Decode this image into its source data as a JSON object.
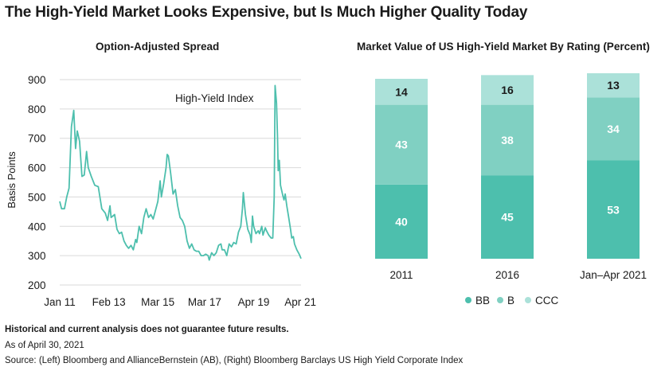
{
  "title": "The High-Yield Market Looks Expensive, but Is Much Higher Quality Today",
  "footer": {
    "disclaimer": "Historical and current analysis does not guarantee future results.",
    "as_of": "As of April 30, 2021",
    "source": "Source: (Left) Bloomberg and AllianceBernstein (AB), (Right) Bloomberg Barclays US High Yield Corporate Index"
  },
  "colors": {
    "line": "#4dbfad",
    "grid": "#d9d9d9",
    "BB": "#4dbfad",
    "B": "#80d0c2",
    "CCC": "#abe1d9"
  },
  "chart_data": [
    {
      "type": "line",
      "title": "Option-Adjusted Spread",
      "ylabel": "Basis Points",
      "xlabel": "",
      "ylim": [
        200,
        900
      ],
      "yticks": [
        200,
        300,
        400,
        500,
        600,
        700,
        800,
        900
      ],
      "xlim": [
        2011.0,
        2021.33
      ],
      "xticks": [
        {
          "value": 2011.0,
          "label": "Jan 11"
        },
        {
          "value": 2013.1,
          "label": "Feb 13"
        },
        {
          "value": 2015.2,
          "label": "Mar 15"
        },
        {
          "value": 2017.2,
          "label": "Mar 17"
        },
        {
          "value": 2019.3,
          "label": "Apr 19"
        },
        {
          "value": 2021.3,
          "label": "Apr 21"
        }
      ],
      "grid": true,
      "annotation": "High-Yield Index",
      "series": [
        {
          "name": "High-Yield Index",
          "points": [
            [
              2011.0,
              485
            ],
            [
              2011.08,
              460
            ],
            [
              2011.2,
              460
            ],
            [
              2011.3,
              500
            ],
            [
              2011.4,
              530
            ],
            [
              2011.5,
              740
            ],
            [
              2011.6,
              795
            ],
            [
              2011.68,
              665
            ],
            [
              2011.75,
              725
            ],
            [
              2011.85,
              690
            ],
            [
              2011.95,
              570
            ],
            [
              2012.05,
              575
            ],
            [
              2012.15,
              655
            ],
            [
              2012.22,
              600
            ],
            [
              2012.35,
              570
            ],
            [
              2012.5,
              540
            ],
            [
              2012.65,
              535
            ],
            [
              2012.8,
              460
            ],
            [
              2012.95,
              445
            ],
            [
              2013.05,
              420
            ],
            [
              2013.15,
              470
            ],
            [
              2013.2,
              430
            ],
            [
              2013.35,
              440
            ],
            [
              2013.45,
              390
            ],
            [
              2013.55,
              375
            ],
            [
              2013.65,
              380
            ],
            [
              2013.75,
              350
            ],
            [
              2013.85,
              335
            ],
            [
              2013.95,
              325
            ],
            [
              2014.05,
              335
            ],
            [
              2014.15,
              320
            ],
            [
              2014.25,
              355
            ],
            [
              2014.3,
              345
            ],
            [
              2014.4,
              400
            ],
            [
              2014.5,
              375
            ],
            [
              2014.6,
              430
            ],
            [
              2014.7,
              460
            ],
            [
              2014.8,
              430
            ],
            [
              2014.9,
              440
            ],
            [
              2015.0,
              425
            ],
            [
              2015.1,
              455
            ],
            [
              2015.2,
              485
            ],
            [
              2015.3,
              555
            ],
            [
              2015.35,
              500
            ],
            [
              2015.45,
              545
            ],
            [
              2015.55,
              600
            ],
            [
              2015.6,
              645
            ],
            [
              2015.65,
              640
            ],
            [
              2015.75,
              580
            ],
            [
              2015.85,
              510
            ],
            [
              2015.95,
              525
            ],
            [
              2016.05,
              470
            ],
            [
              2016.15,
              430
            ],
            [
              2016.25,
              420
            ],
            [
              2016.35,
              400
            ],
            [
              2016.45,
              350
            ],
            [
              2016.55,
              325
            ],
            [
              2016.65,
              340
            ],
            [
              2016.75,
              320
            ],
            [
              2016.85,
              315
            ],
            [
              2016.95,
              315
            ],
            [
              2017.05,
              300
            ],
            [
              2017.15,
              300
            ],
            [
              2017.25,
              305
            ],
            [
              2017.35,
              300
            ],
            [
              2017.4,
              285
            ],
            [
              2017.5,
              310
            ],
            [
              2017.6,
              300
            ],
            [
              2017.7,
              310
            ],
            [
              2017.8,
              335
            ],
            [
              2017.9,
              340
            ],
            [
              2017.95,
              320
            ],
            [
              2018.05,
              320
            ],
            [
              2018.15,
              300
            ],
            [
              2018.25,
              340
            ],
            [
              2018.35,
              330
            ],
            [
              2018.45,
              345
            ],
            [
              2018.55,
              340
            ],
            [
              2018.65,
              380
            ],
            [
              2018.75,
              400
            ],
            [
              2018.82,
              460
            ],
            [
              2018.86,
              515
            ],
            [
              2018.95,
              440
            ],
            [
              2019.05,
              390
            ],
            [
              2019.15,
              370
            ],
            [
              2019.2,
              345
            ],
            [
              2019.25,
              435
            ],
            [
              2019.3,
              400
            ],
            [
              2019.4,
              375
            ],
            [
              2019.5,
              385
            ],
            [
              2019.55,
              375
            ],
            [
              2019.65,
              400
            ],
            [
              2019.7,
              370
            ],
            [
              2019.8,
              395
            ],
            [
              2019.85,
              385
            ],
            [
              2019.95,
              370
            ],
            [
              2020.05,
              360
            ],
            [
              2020.12,
              360
            ],
            [
              2020.18,
              500
            ],
            [
              2020.22,
              880
            ],
            [
              2020.28,
              820
            ],
            [
              2020.32,
              710
            ],
            [
              2020.35,
              590
            ],
            [
              2020.4,
              625
            ],
            [
              2020.45,
              540
            ],
            [
              2020.55,
              505
            ],
            [
              2020.6,
              490
            ],
            [
              2020.65,
              510
            ],
            [
              2020.72,
              470
            ],
            [
              2020.8,
              430
            ],
            [
              2020.88,
              390
            ],
            [
              2020.93,
              360
            ],
            [
              2021.0,
              365
            ],
            [
              2021.05,
              340
            ],
            [
              2021.15,
              320
            ],
            [
              2021.25,
              305
            ],
            [
              2021.33,
              290
            ]
          ]
        }
      ]
    },
    {
      "type": "bar",
      "stacked": true,
      "title": "Market Value of US High-Yield Market By Rating (Percent)",
      "categories": [
        "2011",
        "2016",
        "Jan–Apr 2021"
      ],
      "ylim": [
        0,
        100
      ],
      "grid": false,
      "legend": "bottom",
      "series": [
        {
          "name": "BB",
          "values": [
            40,
            45,
            53
          ]
        },
        {
          "name": "B",
          "values": [
            43,
            38,
            34
          ]
        },
        {
          "name": "CCC",
          "values": [
            14,
            16,
            13
          ]
        }
      ]
    }
  ]
}
